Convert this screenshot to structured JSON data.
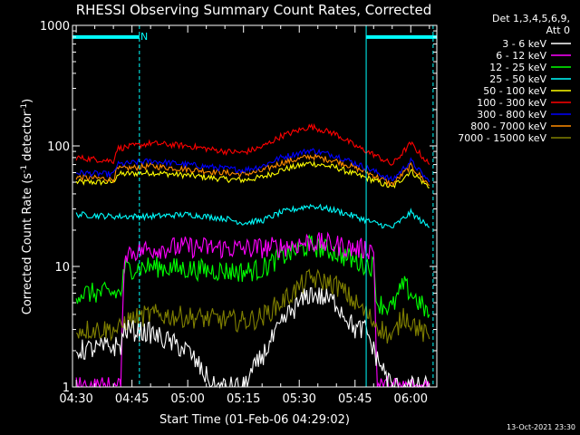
{
  "chart_data": {
    "type": "line",
    "title": "RHESSI Observing Summary Count Rates, Corrected",
    "xlabel": "Start Time (01-Feb-06 04:29:02)",
    "ylabel_main": "Corrected Count Rate (s",
    "ylabel_sup1": "-1",
    "ylabel_mid": " detector",
    "ylabel_sup2": "-1",
    "ylabel_end": ")",
    "y_scale": "log",
    "ylim": [
      1,
      1000
    ],
    "xlim": [
      "04:29",
      "06:07"
    ],
    "y_ticks": [
      "1",
      "10",
      "100",
      "1000"
    ],
    "x_ticks": [
      "04:30",
      "04:45",
      "05:00",
      "05:15",
      "05:30",
      "05:45",
      "06:00"
    ],
    "legend_header": [
      "Det 1,3,4,5,6,9,",
      "Att 0"
    ],
    "legend_position": "right",
    "annotation": "N",
    "footer": "13-Oct-2021 23:30",
    "night_bars": [
      {
        "start": "04:29",
        "end": "04:47",
        "level": 800
      },
      {
        "start": "05:48",
        "end": "06:07",
        "level": 800
      }
    ],
    "vertical_markers": [
      "04:29",
      "04:47",
      "05:48",
      "06:06"
    ],
    "series": [
      {
        "name": "3 - 6 keV",
        "color": "#ffffff",
        "x": [
          "04:30",
          "04:42",
          "04:43",
          "04:50",
          "05:00",
          "05:07",
          "05:15",
          "05:20",
          "05:27",
          "05:33",
          "05:40",
          "05:45",
          "05:48",
          "05:50",
          "05:52",
          "05:55",
          "06:00",
          "06:05"
        ],
        "values": [
          2.0,
          2.2,
          3.0,
          2.8,
          2.0,
          1.0,
          1.0,
          1.8,
          4.0,
          6.0,
          5.0,
          3.0,
          3.0,
          2.0,
          1.5,
          1.0,
          1.0,
          1.0
        ]
      },
      {
        "name": "6 - 12 keV",
        "color": "#ff00ff",
        "x": [
          "04:30",
          "04:42",
          "04:43",
          "04:50",
          "05:00",
          "05:15",
          "05:25",
          "05:33",
          "05:40",
          "05:45",
          "05:50",
          "05:51",
          "05:55",
          "06:00",
          "06:05"
        ],
        "values": [
          1.0,
          1.0,
          13.0,
          14.0,
          14.5,
          14.0,
          14.5,
          16.0,
          15.0,
          14.0,
          14.0,
          1.0,
          1.0,
          1.0,
          1.0
        ]
      },
      {
        "name": "12 - 25 keV",
        "color": "#00ff00",
        "x": [
          "04:30",
          "04:42",
          "04:43",
          "04:50",
          "05:00",
          "05:15",
          "05:20",
          "05:25",
          "05:33",
          "05:40",
          "05:45",
          "05:50",
          "05:51",
          "05:55",
          "05:58",
          "06:00",
          "06:05"
        ],
        "values": [
          6.0,
          6.0,
          9.5,
          10.0,
          9.5,
          9.0,
          9.5,
          12.0,
          15.0,
          13.0,
          11.0,
          10.0,
          5.0,
          4.5,
          7.0,
          6.0,
          4.0
        ]
      },
      {
        "name": "25 - 50 keV",
        "color": "#00ffff",
        "x": [
          "04:30",
          "04:40",
          "04:50",
          "05:00",
          "05:10",
          "05:15",
          "05:20",
          "05:25",
          "05:33",
          "05:40",
          "05:45",
          "05:50",
          "05:55",
          "06:00",
          "06:05"
        ],
        "values": [
          27,
          26,
          26,
          27,
          25,
          23,
          24,
          28,
          32,
          29,
          26,
          23,
          21,
          28,
          21
        ]
      },
      {
        "name": "50 - 100 keV",
        "color": "#ffff00",
        "x": [
          "04:30",
          "04:40",
          "04:41",
          "04:50",
          "05:00",
          "05:10",
          "05:15",
          "05:20",
          "05:25",
          "05:33",
          "05:40",
          "05:45",
          "05:50",
          "05:55",
          "06:00",
          "06:05"
        ],
        "values": [
          50,
          50,
          58,
          60,
          57,
          53,
          52,
          55,
          63,
          72,
          66,
          58,
          52,
          45,
          62,
          45
        ]
      },
      {
        "name": "100 - 300 keV",
        "color": "#ff0000",
        "x": [
          "04:30",
          "04:40",
          "04:41",
          "04:50",
          "05:00",
          "05:10",
          "05:15",
          "05:20",
          "05:25",
          "05:33",
          "05:40",
          "05:45",
          "05:50",
          "05:55",
          "06:00",
          "06:05"
        ],
        "values": [
          80,
          75,
          95,
          105,
          100,
          90,
          88,
          98,
          120,
          145,
          125,
          100,
          85,
          70,
          105,
          70
        ]
      },
      {
        "name": "300 - 800 keV",
        "color": "#0000ff",
        "x": [
          "04:30",
          "04:40",
          "04:41",
          "04:50",
          "05:00",
          "05:10",
          "05:15",
          "05:20",
          "05:25",
          "05:33",
          "05:40",
          "05:45",
          "05:50",
          "05:55",
          "06:00",
          "06:05"
        ],
        "values": [
          60,
          58,
          70,
          75,
          70,
          65,
          63,
          68,
          80,
          92,
          83,
          72,
          62,
          52,
          75,
          50
        ]
      },
      {
        "name": "800 - 7000 keV",
        "color": "#ff8c00",
        "x": [
          "04:30",
          "04:40",
          "04:41",
          "04:50",
          "05:00",
          "05:10",
          "05:15",
          "05:20",
          "05:25",
          "05:33",
          "05:40",
          "05:45",
          "05:50",
          "05:55",
          "06:00",
          "06:05"
        ],
        "values": [
          55,
          53,
          64,
          68,
          64,
          60,
          58,
          62,
          72,
          82,
          75,
          66,
          57,
          48,
          68,
          47
        ]
      },
      {
        "name": "7000 - 15000 keV",
        "color": "#808000",
        "x": [
          "04:30",
          "04:42",
          "04:43",
          "04:50",
          "05:00",
          "05:15",
          "05:20",
          "05:25",
          "05:33",
          "05:40",
          "05:45",
          "05:50",
          "05:55",
          "05:58",
          "06:00",
          "06:05"
        ],
        "values": [
          3.0,
          3.0,
          3.5,
          4.0,
          3.8,
          3.5,
          3.8,
          5.0,
          8.0,
          7.0,
          5.0,
          3.5,
          2.5,
          4.0,
          3.5,
          2.5
        ]
      }
    ]
  }
}
